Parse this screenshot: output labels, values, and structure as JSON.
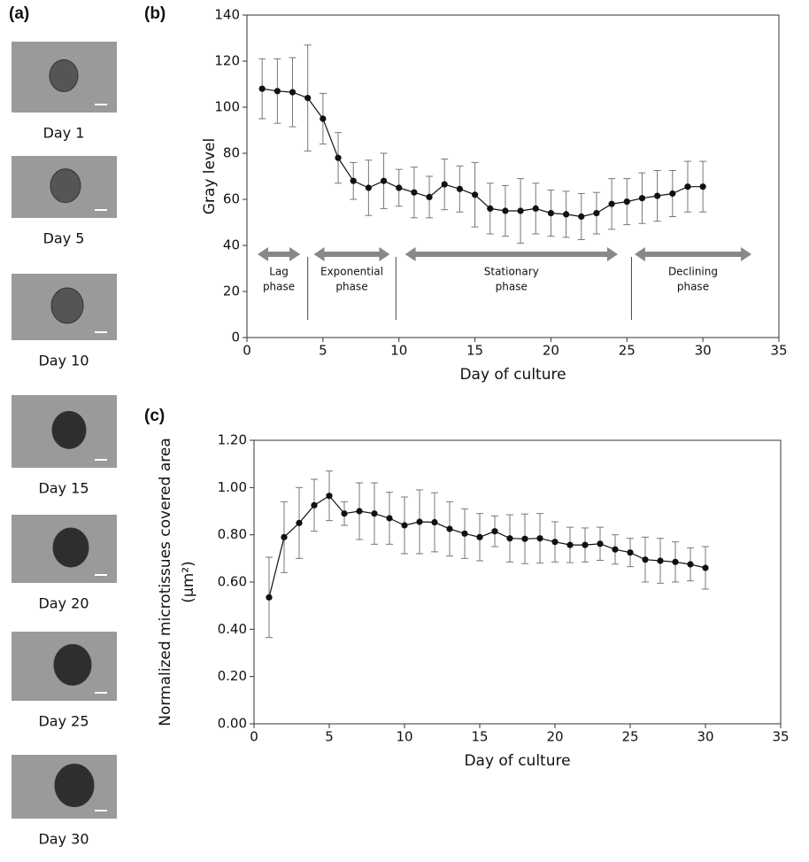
{
  "panel_a": {
    "label": "(a)",
    "images": [
      {
        "caption": "Day 1"
      },
      {
        "caption": "Day 5"
      },
      {
        "caption": "Day 10"
      },
      {
        "caption": "Day 15"
      },
      {
        "caption": "Day 20"
      },
      {
        "caption": "Day 25"
      },
      {
        "caption": "Day 30"
      }
    ]
  },
  "chart_data": [
    {
      "type": "line",
      "panel_label": "(b)",
      "x_label": "Day of culture",
      "y_label": [
        "Gray level"
      ],
      "x": [
        1,
        2,
        3,
        4,
        5,
        6,
        7,
        8,
        9,
        10,
        11,
        12,
        13,
        14,
        15,
        16,
        17,
        18,
        19,
        20,
        21,
        22,
        23,
        24,
        25,
        26,
        27,
        28,
        29,
        30
      ],
      "values": [
        108,
        107,
        106.5,
        104,
        95,
        78,
        68,
        65,
        68,
        65,
        63,
        61,
        66.5,
        64.5,
        62,
        56,
        55,
        55,
        56,
        54,
        53.5,
        52.5,
        54,
        58,
        59,
        60.5,
        61.5,
        62.5,
        65.5,
        65.5
      ],
      "errors": [
        13,
        14,
        15,
        23,
        11,
        11,
        8,
        12,
        12,
        8,
        11,
        9,
        11,
        10,
        14,
        11,
        11,
        14,
        11,
        10,
        10,
        10,
        9,
        11,
        10,
        11,
        11,
        10,
        11,
        11
      ],
      "color": "#111111",
      "xlim": [
        0,
        35
      ],
      "xticks": [
        0,
        5,
        10,
        15,
        20,
        25,
        30,
        35
      ],
      "ylim": [
        0,
        140
      ],
      "yticks": [
        0,
        20,
        40,
        60,
        80,
        100,
        120,
        140
      ],
      "phases": [
        {
          "label": [
            "Lag",
            "phase"
          ],
          "from": 0.7,
          "to": 3.5
        },
        {
          "label": [
            "Exponential",
            "phase"
          ],
          "from": 4.4,
          "to": 9.4
        },
        {
          "label": [
            "Stationary",
            "phase"
          ],
          "from": 10.4,
          "to": 24.4
        },
        {
          "label": [
            "Declining",
            "phase"
          ],
          "from": 25.5,
          "to": 33.2
        }
      ],
      "dividers": [
        4,
        9.8,
        25.3
      ]
    },
    {
      "type": "line",
      "panel_label": "(c)",
      "x_label": "Day of culture",
      "y_label": [
        "Normalized microtissues covered area",
        "(μm²)"
      ],
      "x": [
        1,
        2,
        3,
        4,
        5,
        6,
        7,
        8,
        9,
        10,
        11,
        12,
        13,
        14,
        15,
        16,
        17,
        18,
        19,
        20,
        21,
        22,
        23,
        24,
        25,
        26,
        27,
        28,
        29,
        30
      ],
      "values": [
        0.535,
        0.79,
        0.85,
        0.925,
        0.965,
        0.89,
        0.9,
        0.89,
        0.87,
        0.84,
        0.855,
        0.853,
        0.825,
        0.805,
        0.79,
        0.815,
        0.785,
        0.783,
        0.785,
        0.77,
        0.757,
        0.757,
        0.762,
        0.738,
        0.725,
        0.695,
        0.69,
        0.685,
        0.675,
        0.66
      ],
      "errors": [
        0.17,
        0.15,
        0.15,
        0.11,
        0.105,
        0.05,
        0.12,
        0.13,
        0.11,
        0.12,
        0.135,
        0.125,
        0.115,
        0.105,
        0.1,
        0.065,
        0.1,
        0.105,
        0.105,
        0.085,
        0.075,
        0.072,
        0.07,
        0.062,
        0.06,
        0.095,
        0.095,
        0.085,
        0.07,
        0.09
      ],
      "color": "#111111",
      "xlim": [
        0,
        35
      ],
      "xticks": [
        0,
        5,
        10,
        15,
        20,
        25,
        30,
        35
      ],
      "ylim": [
        0,
        1.2
      ],
      "yticks": [
        {
          "value": 0,
          "label": "0.00"
        },
        {
          "value": 0.2,
          "label": "0.20"
        },
        {
          "value": 0.4,
          "label": "0.40"
        },
        {
          "value": 0.6,
          "label": "0.60"
        },
        {
          "value": 0.8,
          "label": "0.80"
        },
        {
          "value": 1,
          "label": "1.00"
        },
        {
          "value": 1.2,
          "label": "1.20"
        }
      ]
    }
  ]
}
